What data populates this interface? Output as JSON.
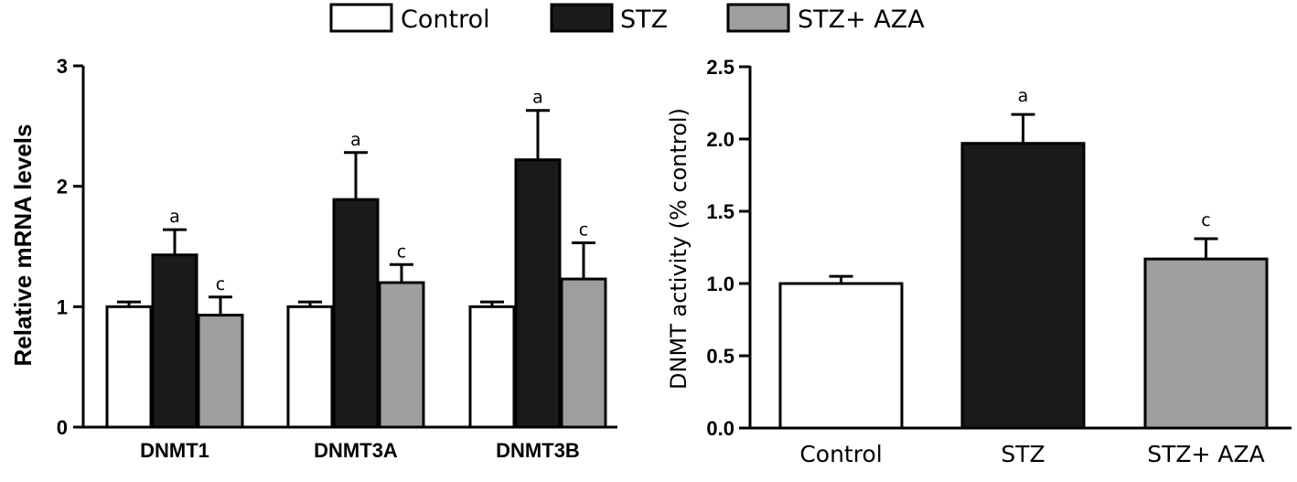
{
  "legend": {
    "position": "top-center",
    "entries": [
      {
        "label": "Control",
        "color": "#ffffff"
      },
      {
        "label": "STZ",
        "color": "#1a1a1a"
      },
      {
        "label": "STZ+ AZA",
        "color": "#9e9e9e"
      }
    ]
  },
  "chart_data": [
    {
      "type": "bar",
      "ylabel": "Relative mRNA levels",
      "xlabel": "",
      "ylim": [
        0,
        3
      ],
      "yticks": [
        "0",
        "1",
        "2",
        "3"
      ],
      "categories": [
        "DNMT1",
        "DNMT3A",
        "DNMT3B"
      ],
      "series": [
        {
          "name": "Control",
          "color": "#ffffff",
          "values": [
            1.0,
            1.0,
            1.0
          ],
          "errors": [
            0.04,
            0.04,
            0.04
          ],
          "annotations": [
            "",
            "",
            ""
          ]
        },
        {
          "name": "STZ",
          "color": "#1a1a1a",
          "values": [
            1.43,
            1.89,
            2.22
          ],
          "errors": [
            0.21,
            0.39,
            0.41
          ],
          "annotations": [
            "a",
            "a",
            "a"
          ]
        },
        {
          "name": "STZ+ AZA",
          "color": "#9e9e9e",
          "values": [
            0.93,
            1.2,
            1.23
          ],
          "errors": [
            0.15,
            0.15,
            0.3
          ],
          "annotations": [
            "c",
            "c",
            "c"
          ]
        }
      ],
      "grid": false
    },
    {
      "type": "bar",
      "ylabel": "DNMT activity (% control)",
      "xlabel": "",
      "ylim": [
        0,
        2.5
      ],
      "yticks": [
        "0.0",
        "0.5",
        "1.0",
        "1.5",
        "2.0",
        "2.5"
      ],
      "categories": [
        "Control",
        "STZ",
        "STZ+ AZA"
      ],
      "values": [
        1.0,
        1.97,
        1.17
      ],
      "errors": [
        0.05,
        0.2,
        0.14
      ],
      "colors": [
        "#ffffff",
        "#1a1a1a",
        "#9e9e9e"
      ],
      "annotations": [
        "",
        "a",
        "c"
      ],
      "grid": false
    }
  ]
}
